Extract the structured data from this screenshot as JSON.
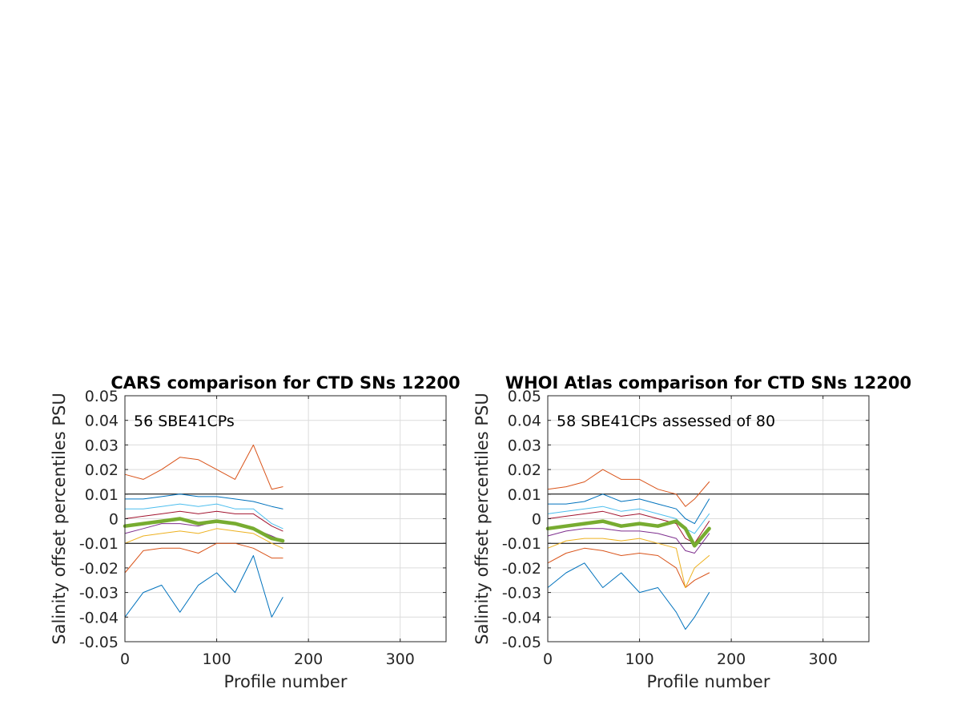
{
  "chart_data": [
    {
      "type": "line",
      "title": "CARS comparison for CTD SNs 12200",
      "annotation": "56 SBE41CPs",
      "xlabel": "Profile number",
      "ylabel": "Salinity offset percentiles PSU",
      "xlim": [
        0,
        350
      ],
      "ylim": [
        -0.05,
        0.05
      ],
      "xticks": [
        0,
        100,
        200,
        300
      ],
      "xtick_labels": [
        "0",
        "100",
        "200",
        "300"
      ],
      "yticks": [
        0.05,
        0.04,
        0.03,
        0.02,
        0.01,
        0,
        -0.01,
        -0.02,
        -0.03,
        -0.04,
        -0.05
      ],
      "ytick_labels": [
        "0.05",
        "0.04",
        "0.03",
        "0.02",
        "0.01",
        "0",
        "-0.01",
        "-0.02",
        "-0.03",
        "-0.04",
        "-0.05"
      ],
      "grid": true,
      "reference_lines": [
        0.01,
        -0.01
      ],
      "x": [
        0,
        20,
        40,
        60,
        80,
        100,
        120,
        140,
        160,
        172
      ],
      "series": [
        {
          "color": "#0072BD",
          "values": [
            -0.04,
            -0.03,
            -0.027,
            -0.038,
            -0.027,
            -0.022,
            -0.03,
            -0.015,
            -0.04,
            -0.032
          ],
          "width": 1
        },
        {
          "color": "#D95319",
          "values": [
            -0.022,
            -0.013,
            -0.012,
            -0.012,
            -0.014,
            -0.01,
            -0.01,
            -0.012,
            -0.016,
            -0.016
          ],
          "width": 1
        },
        {
          "color": "#EDB120",
          "values": [
            -0.01,
            -0.007,
            -0.006,
            -0.005,
            -0.006,
            -0.004,
            -0.005,
            -0.006,
            -0.01,
            -0.012
          ],
          "width": 1
        },
        {
          "color": "#7E2F8E",
          "values": [
            -0.006,
            -0.004,
            -0.002,
            -0.002,
            -0.003,
            -0.001,
            -0.002,
            -0.004,
            -0.007,
            -0.009
          ],
          "width": 1
        },
        {
          "color": "#A2142F",
          "values": [
            0.0,
            0.001,
            0.002,
            0.003,
            0.002,
            0.003,
            0.002,
            0.002,
            -0.003,
            -0.005
          ],
          "width": 1
        },
        {
          "color": "#4DBEEE",
          "values": [
            0.004,
            0.004,
            0.005,
            0.006,
            0.005,
            0.006,
            0.004,
            0.004,
            -0.002,
            -0.004
          ],
          "width": 1
        },
        {
          "color": "#0072BD",
          "values": [
            0.008,
            0.008,
            0.009,
            0.01,
            0.009,
            0.009,
            0.008,
            0.007,
            0.005,
            0.004
          ],
          "width": 1
        },
        {
          "color": "#D95319",
          "values": [
            0.018,
            0.016,
            0.02,
            0.025,
            0.024,
            0.02,
            0.016,
            0.03,
            0.012,
            0.013
          ],
          "width": 1
        },
        {
          "color": "#77AC30",
          "values": [
            -0.003,
            -0.002,
            -0.001,
            0.0,
            -0.002,
            -0.001,
            -0.002,
            -0.004,
            -0.008,
            -0.009
          ],
          "width": 4.5
        }
      ]
    },
    {
      "type": "line",
      "title": "WHOI Atlas comparison for CTD SNs 12200",
      "annotation": "58 SBE41CPs assessed of 80",
      "xlabel": "Profile number",
      "ylabel": "Salinity offset percentiles PSU",
      "xlim": [
        0,
        350
      ],
      "ylim": [
        -0.05,
        0.05
      ],
      "xticks": [
        0,
        100,
        200,
        300
      ],
      "xtick_labels": [
        "0",
        "100",
        "200",
        "300"
      ],
      "yticks": [
        0.05,
        0.04,
        0.03,
        0.02,
        0.01,
        0,
        -0.01,
        -0.02,
        -0.03,
        -0.04,
        -0.05
      ],
      "ytick_labels": [
        "0.05",
        "0.04",
        "0.03",
        "0.02",
        "0.01",
        "0",
        "-0.01",
        "-0.02",
        "-0.03",
        "-0.04",
        "-0.05"
      ],
      "grid": true,
      "reference_lines": [
        0.01,
        -0.01
      ],
      "x": [
        0,
        20,
        40,
        60,
        80,
        100,
        120,
        140,
        150,
        160,
        176
      ],
      "series": [
        {
          "color": "#0072BD",
          "values": [
            -0.028,
            -0.022,
            -0.018,
            -0.028,
            -0.022,
            -0.03,
            -0.028,
            -0.038,
            -0.045,
            -0.04,
            -0.03
          ],
          "width": 1
        },
        {
          "color": "#D95319",
          "values": [
            -0.018,
            -0.014,
            -0.012,
            -0.013,
            -0.015,
            -0.014,
            -0.015,
            -0.02,
            -0.028,
            -0.025,
            -0.022
          ],
          "width": 1
        },
        {
          "color": "#EDB120",
          "values": [
            -0.012,
            -0.009,
            -0.008,
            -0.008,
            -0.009,
            -0.008,
            -0.01,
            -0.012,
            -0.028,
            -0.02,
            -0.015
          ],
          "width": 1
        },
        {
          "color": "#7E2F8E",
          "values": [
            -0.007,
            -0.005,
            -0.004,
            -0.004,
            -0.005,
            -0.005,
            -0.006,
            -0.008,
            -0.013,
            -0.014,
            -0.006
          ],
          "width": 1
        },
        {
          "color": "#A2142F",
          "values": [
            0.0,
            0.001,
            0.002,
            0.003,
            0.001,
            0.002,
            0.0,
            -0.002,
            -0.008,
            -0.01,
            -0.001
          ],
          "width": 1
        },
        {
          "color": "#4DBEEE",
          "values": [
            0.002,
            0.003,
            0.004,
            0.005,
            0.003,
            0.004,
            0.002,
            0.0,
            -0.004,
            -0.006,
            0.002
          ],
          "width": 1
        },
        {
          "color": "#0072BD",
          "values": [
            0.006,
            0.006,
            0.007,
            0.01,
            0.007,
            0.008,
            0.006,
            0.004,
            0.0,
            -0.002,
            0.008
          ],
          "width": 1
        },
        {
          "color": "#D95319",
          "values": [
            0.012,
            0.013,
            0.015,
            0.02,
            0.016,
            0.016,
            0.012,
            0.01,
            0.005,
            0.008,
            0.015
          ],
          "width": 1
        },
        {
          "color": "#77AC30",
          "values": [
            -0.004,
            -0.003,
            -0.002,
            -0.001,
            -0.003,
            -0.002,
            -0.003,
            -0.001,
            -0.004,
            -0.011,
            -0.004
          ],
          "width": 4.5
        }
      ]
    }
  ]
}
